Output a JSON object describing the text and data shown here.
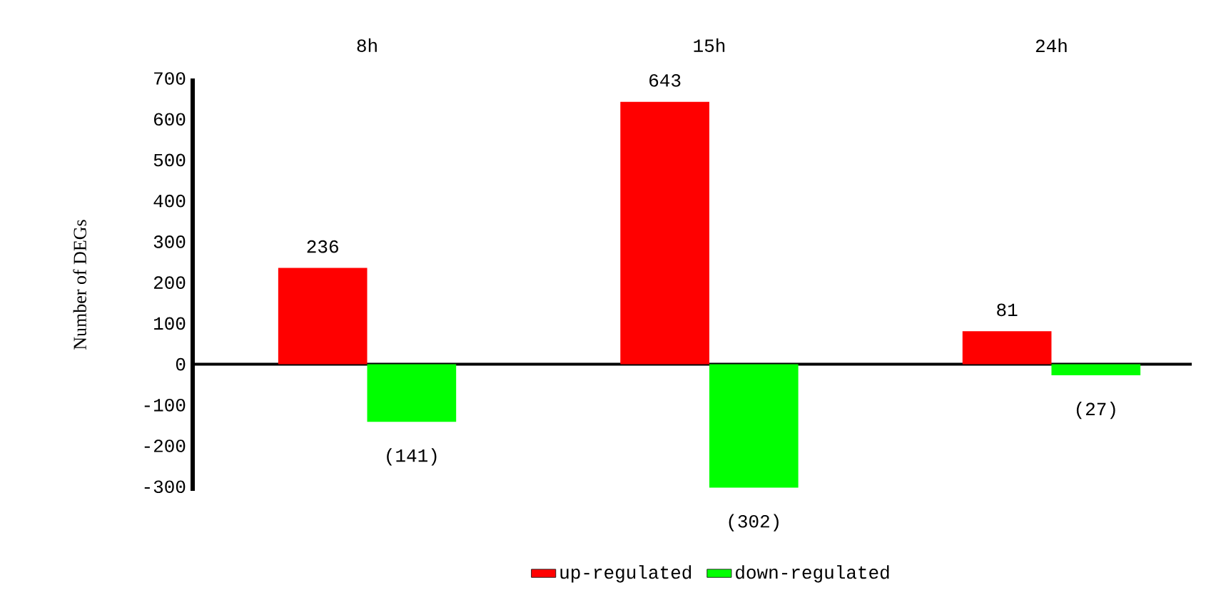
{
  "chart_data": {
    "type": "bar",
    "categories": [
      "8h",
      "15h",
      "24h"
    ],
    "ylabel": "Number of DEGs",
    "ylim": [
      -310,
      700
    ],
    "yticks": [
      -300,
      -200,
      -100,
      0,
      100,
      200,
      300,
      400,
      500,
      600,
      700
    ],
    "legend": "bottom",
    "series": [
      {
        "name": "up-regulated",
        "color": "#ff0000",
        "values": [
          236,
          643,
          81
        ],
        "value_labels": [
          "236",
          "643",
          "81"
        ]
      },
      {
        "name": "down-regulated",
        "color": "#00ff00",
        "values": [
          -141,
          -302,
          -27
        ],
        "value_labels": [
          "(141)",
          "(302)",
          "(27)"
        ]
      }
    ]
  }
}
